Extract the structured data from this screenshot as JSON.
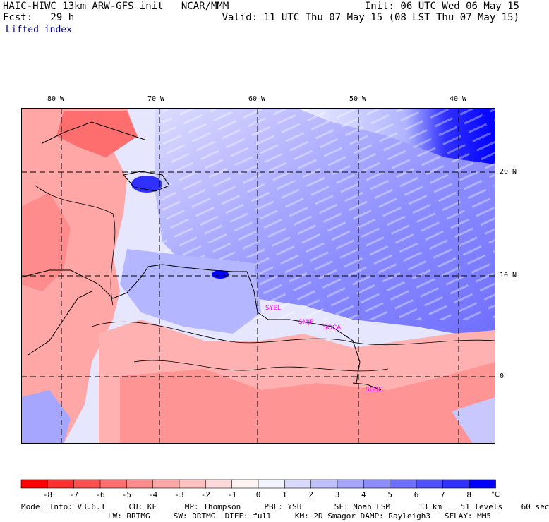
{
  "header": {
    "title": "HAIC-HIWC 13km ARW-GFS init   NCAR/MMM",
    "init": "Init: 06 UTC Wed 06 May 15",
    "fcst": "Fcst:   29 h",
    "valid": "Valid: 11 UTC Thu 07 May 15 (08 LST Thu 07 May 15)",
    "field": "Lifted index"
  },
  "map": {
    "lon_labels": [
      "80 W",
      "70 W",
      "60 W",
      "50 W",
      "40 W"
    ],
    "lat_labels": [
      "20 N",
      "10 N",
      "0"
    ],
    "stations": [
      "SYEL",
      "SMJP",
      "SOCA",
      "SBBE"
    ]
  },
  "colorbar": {
    "ticks": [
      "-8",
      "-7",
      "-6",
      "-5",
      "-4",
      "-3",
      "-2",
      "-1",
      "0",
      "1",
      "2",
      "3",
      "4",
      "5",
      "6",
      "7",
      "8"
    ],
    "unit": "°C",
    "colors": [
      "#ff0000",
      "#ff3030",
      "#ff5050",
      "#ff6e6e",
      "#ff8c8c",
      "#ffa6a6",
      "#ffc0c0",
      "#ffdada",
      "#fff4f4",
      "#f4f4ff",
      "#dadaff",
      "#c0c0ff",
      "#a6a6ff",
      "#8c8cff",
      "#6e6eff",
      "#5050ff",
      "#3030ff",
      "#0000ff"
    ]
  },
  "footer": {
    "line1": "Model Info: V3.6.1     CU: KF      MP: Thompson     PBL: YSU       SF: Noah LSM      13 km    51 levels    60 sec",
    "line2": "LW: RRTMG     SW: RRTMG  DIFF: full     KM: 2D Smagor DAMP: Rayleigh3   SFLAY: MM5"
  }
}
